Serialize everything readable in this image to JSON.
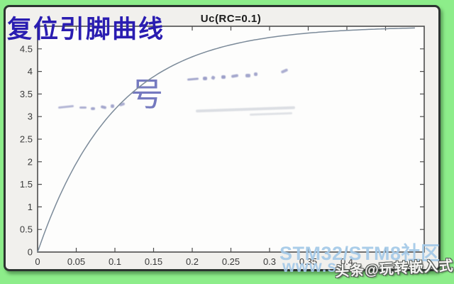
{
  "page": {
    "background_color": "#8ded8a",
    "frame_border_color": "#2c3430",
    "figure_background": "#f1f0ed"
  },
  "overlay_title": {
    "text": "复位引脚曲线",
    "color": "#2a1db1"
  },
  "chart_data": {
    "type": "line",
    "title": "Uc(RC=0.1)",
    "xlabel": "",
    "ylabel": "",
    "xlim": [
      0,
      0.5
    ],
    "ylim": [
      0,
      5
    ],
    "x_tick_step": 0.05,
    "y_tick_step": 0.5,
    "x_ticks_labeled": [
      "0",
      "0.05",
      "0.1",
      "0.15",
      "0.2",
      "0.25",
      "0.3",
      "0.35",
      "0.4"
    ],
    "y_ticks_labeled": [
      "0",
      "0.5",
      "1",
      "1.5",
      "2",
      "2.5",
      "3",
      "3.5",
      "4",
      "4.5"
    ],
    "grid": false,
    "box": true,
    "legend": "none",
    "rc": 0.1,
    "u_final": 5,
    "line_color": "#7b8a99",
    "axis_color": "#4d4d4d",
    "x": [
      0,
      0.025,
      0.05,
      0.075,
      0.1,
      0.125,
      0.15,
      0.175,
      0.2,
      0.225,
      0.25,
      0.275,
      0.3,
      0.325,
      0.35,
      0.375,
      0.4,
      0.425,
      0.45,
      0.475,
      0.5
    ],
    "series": [
      {
        "name": "Uc",
        "values": [
          0,
          1.106,
          1.967,
          2.638,
          3.161,
          3.567,
          3.884,
          4.131,
          4.323,
          4.473,
          4.59,
          4.68,
          4.751,
          4.806,
          4.849,
          4.882,
          4.908,
          4.929,
          4.944,
          4.957,
          4.966
        ]
      }
    ]
  },
  "faded_watermark": {
    "visible_char": "号",
    "color": "#5d63b5"
  },
  "watermarks": {
    "community": {
      "line1": "STM32/STM8社区",
      "line2": "www.s",
      "color": "#a4c9e8"
    },
    "toutiao": {
      "text": "头条@玩转嵌入式",
      "fill": "#f6f6f4",
      "outline": "#565a56"
    }
  }
}
